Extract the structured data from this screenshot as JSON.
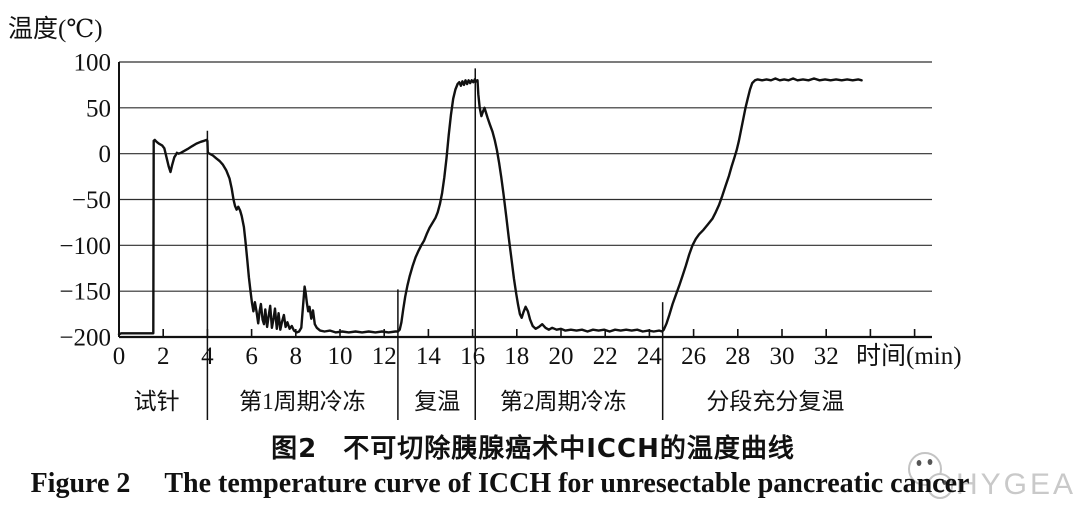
{
  "figure": {
    "caption_zh_prefix": "图2",
    "caption_zh_text": "不可切除胰腺癌术中ICCH的温度曲线",
    "caption_en_prefix": "Figure 2",
    "caption_en_text": "The temperature curve of ICCH for unresectable pancreatic cancer",
    "watermark_text": "HYGEA"
  },
  "colors": {
    "curve": "#111111",
    "grid": "#2e2e2e",
    "axis": "#111111",
    "divider": "#111111",
    "watermark_gray": "#c9c9c9",
    "watermark_eyes": "#555555"
  },
  "chart_data": {
    "type": "line",
    "ylabel": "温度(℃)",
    "xlabel": "时间(min)",
    "ylim": [
      -200,
      100
    ],
    "xlim": [
      0,
      37
    ],
    "grid": "horizontal",
    "legend": "none",
    "y_ticks": [
      100,
      50,
      0,
      -50,
      -100,
      -150,
      -200
    ],
    "x_ticks_labeled": [
      0,
      2,
      4,
      6,
      8,
      10,
      12,
      14,
      16,
      18,
      20,
      22,
      24,
      26,
      28,
      30,
      32
    ],
    "x_ticks_unlabeled": [
      34,
      36
    ],
    "phases": [
      {
        "label": "试针",
        "from": 0,
        "to": 4,
        "label_t": 1.7
      },
      {
        "label": "第1周期冷冻",
        "from": 4,
        "to": 12.62,
        "label_t": 8.3
      },
      {
        "label": "复温",
        "from": 12.62,
        "to": 16.12,
        "label_t": 14.4
      },
      {
        "label": "第2周期冷冻",
        "from": 16.12,
        "to": 24.6,
        "label_t": 20.1
      },
      {
        "label": "分段充分复温",
        "from": 24.6,
        "to": 33.6,
        "label_t": 29.7
      }
    ],
    "dividers": [
      {
        "t": 4,
        "top_temp": 25
      },
      {
        "t": 12.62,
        "top_temp": -148
      },
      {
        "t": 16.12,
        "top_temp": 93
      },
      {
        "t": 24.6,
        "top_temp": -162
      }
    ],
    "series": [
      {
        "name": "temperature",
        "points": [
          [
            0,
            -197
          ],
          [
            0.1,
            -196
          ],
          [
            1.5,
            -196
          ],
          [
            1.55,
            -196
          ],
          [
            1.57,
            14
          ],
          [
            1.62,
            15
          ],
          [
            1.7,
            13
          ],
          [
            1.8,
            11
          ],
          [
            1.95,
            9
          ],
          [
            2.05,
            6
          ],
          [
            2.15,
            -4
          ],
          [
            2.25,
            -14
          ],
          [
            2.33,
            -20
          ],
          [
            2.4,
            -13
          ],
          [
            2.5,
            -4
          ],
          [
            2.58,
            -1
          ],
          [
            2.62,
            1
          ],
          [
            2.7,
            0
          ],
          [
            2.8,
            1
          ],
          [
            2.95,
            3
          ],
          [
            3.1,
            5
          ],
          [
            3.3,
            8
          ],
          [
            3.5,
            11
          ],
          [
            3.7,
            13
          ],
          [
            3.85,
            14
          ],
          [
            3.97,
            15
          ],
          [
            4.0,
            14
          ],
          [
            4.02,
            1
          ],
          [
            4.1,
            0
          ],
          [
            4.25,
            -2
          ],
          [
            4.4,
            -5
          ],
          [
            4.55,
            -8
          ],
          [
            4.7,
            -12
          ],
          [
            4.85,
            -18
          ],
          [
            5.0,
            -27
          ],
          [
            5.1,
            -38
          ],
          [
            5.18,
            -50
          ],
          [
            5.25,
            -57
          ],
          [
            5.32,
            -61
          ],
          [
            5.4,
            -58
          ],
          [
            5.48,
            -62
          ],
          [
            5.55,
            -68
          ],
          [
            5.65,
            -80
          ],
          [
            5.72,
            -95
          ],
          [
            5.8,
            -115
          ],
          [
            5.88,
            -135
          ],
          [
            5.95,
            -150
          ],
          [
            6.02,
            -163
          ],
          [
            6.08,
            -172
          ],
          [
            6.15,
            -162
          ],
          [
            6.22,
            -172
          ],
          [
            6.3,
            -185
          ],
          [
            6.36,
            -172
          ],
          [
            6.42,
            -164
          ],
          [
            6.5,
            -181
          ],
          [
            6.56,
            -186
          ],
          [
            6.62,
            -170
          ],
          [
            6.7,
            -189
          ],
          [
            6.78,
            -176
          ],
          [
            6.84,
            -166
          ],
          [
            6.92,
            -190
          ],
          [
            7.0,
            -179
          ],
          [
            7.06,
            -169
          ],
          [
            7.14,
            -191
          ],
          [
            7.22,
            -174
          ],
          [
            7.3,
            -192
          ],
          [
            7.38,
            -183
          ],
          [
            7.46,
            -176
          ],
          [
            7.54,
            -189
          ],
          [
            7.62,
            -184
          ],
          [
            7.72,
            -191
          ],
          [
            7.82,
            -188
          ],
          [
            7.92,
            -193
          ],
          [
            8.05,
            -195
          ],
          [
            8.15,
            -194
          ],
          [
            8.25,
            -190
          ],
          [
            8.32,
            -168
          ],
          [
            8.4,
            -145
          ],
          [
            8.45,
            -152
          ],
          [
            8.5,
            -163
          ],
          [
            8.56,
            -172
          ],
          [
            8.62,
            -167
          ],
          [
            8.7,
            -180
          ],
          [
            8.78,
            -171
          ],
          [
            8.86,
            -186
          ],
          [
            8.95,
            -190
          ],
          [
            9.1,
            -193
          ],
          [
            9.3,
            -194
          ],
          [
            9.55,
            -193
          ],
          [
            9.8,
            -195
          ],
          [
            10.1,
            -194
          ],
          [
            10.4,
            -195
          ],
          [
            10.7,
            -194
          ],
          [
            11.0,
            -195
          ],
          [
            11.3,
            -194
          ],
          [
            11.6,
            -195
          ],
          [
            11.9,
            -194
          ],
          [
            12.2,
            -195
          ],
          [
            12.5,
            -194
          ],
          [
            12.62,
            -194
          ],
          [
            12.7,
            -192
          ],
          [
            12.78,
            -184
          ],
          [
            12.86,
            -170
          ],
          [
            12.95,
            -156
          ],
          [
            13.05,
            -144
          ],
          [
            13.15,
            -134
          ],
          [
            13.28,
            -123
          ],
          [
            13.42,
            -113
          ],
          [
            13.55,
            -106
          ],
          [
            13.68,
            -100
          ],
          [
            13.8,
            -95
          ],
          [
            13.92,
            -88
          ],
          [
            14.05,
            -81
          ],
          [
            14.2,
            -75
          ],
          [
            14.32,
            -70
          ],
          [
            14.42,
            -64
          ],
          [
            14.52,
            -55
          ],
          [
            14.62,
            -43
          ],
          [
            14.72,
            -26
          ],
          [
            14.82,
            -5
          ],
          [
            14.92,
            20
          ],
          [
            15.02,
            42
          ],
          [
            15.12,
            60
          ],
          [
            15.22,
            70
          ],
          [
            15.32,
            76
          ],
          [
            15.4,
            78
          ],
          [
            15.47,
            74
          ],
          [
            15.54,
            79
          ],
          [
            15.61,
            75
          ],
          [
            15.68,
            80
          ],
          [
            15.75,
            76
          ],
          [
            15.82,
            80
          ],
          [
            15.89,
            77
          ],
          [
            15.96,
            80
          ],
          [
            16.03,
            78
          ],
          [
            16.1,
            81
          ],
          [
            16.17,
            79
          ],
          [
            16.22,
            80
          ],
          [
            16.26,
            65
          ],
          [
            16.32,
            50
          ],
          [
            16.4,
            41
          ],
          [
            16.47,
            46
          ],
          [
            16.54,
            50
          ],
          [
            16.6,
            45
          ],
          [
            16.68,
            39
          ],
          [
            16.78,
            32
          ],
          [
            16.9,
            24
          ],
          [
            17.0,
            15
          ],
          [
            17.1,
            4
          ],
          [
            17.2,
            -10
          ],
          [
            17.3,
            -26
          ],
          [
            17.4,
            -44
          ],
          [
            17.52,
            -68
          ],
          [
            17.64,
            -92
          ],
          [
            17.76,
            -115
          ],
          [
            17.87,
            -136
          ],
          [
            17.97,
            -152
          ],
          [
            18.06,
            -165
          ],
          [
            18.14,
            -175
          ],
          [
            18.22,
            -179
          ],
          [
            18.3,
            -173
          ],
          [
            18.4,
            -167
          ],
          [
            18.5,
            -172
          ],
          [
            18.6,
            -181
          ],
          [
            18.72,
            -188
          ],
          [
            18.85,
            -191
          ],
          [
            19.0,
            -189
          ],
          [
            19.15,
            -186
          ],
          [
            19.3,
            -190
          ],
          [
            19.45,
            -192
          ],
          [
            19.6,
            -190
          ],
          [
            19.8,
            -192
          ],
          [
            20.0,
            -191
          ],
          [
            20.2,
            -193
          ],
          [
            20.45,
            -192
          ],
          [
            20.7,
            -193
          ],
          [
            20.95,
            -192
          ],
          [
            21.2,
            -194
          ],
          [
            21.45,
            -192
          ],
          [
            21.7,
            -193
          ],
          [
            21.95,
            -192
          ],
          [
            22.2,
            -194
          ],
          [
            22.45,
            -192
          ],
          [
            22.7,
            -193
          ],
          [
            22.95,
            -192
          ],
          [
            23.2,
            -193
          ],
          [
            23.45,
            -192
          ],
          [
            23.7,
            -194
          ],
          [
            23.95,
            -193
          ],
          [
            24.2,
            -194
          ],
          [
            24.45,
            -193
          ],
          [
            24.58,
            -194
          ],
          [
            24.65,
            -192
          ],
          [
            24.78,
            -185
          ],
          [
            24.9,
            -176
          ],
          [
            25.05,
            -164
          ],
          [
            25.2,
            -154
          ],
          [
            25.35,
            -144
          ],
          [
            25.5,
            -133
          ],
          [
            25.65,
            -122
          ],
          [
            25.8,
            -110
          ],
          [
            25.95,
            -100
          ],
          [
            26.1,
            -93
          ],
          [
            26.25,
            -88
          ],
          [
            26.45,
            -83
          ],
          [
            26.65,
            -77
          ],
          [
            26.85,
            -71
          ],
          [
            27.0,
            -64
          ],
          [
            27.15,
            -56
          ],
          [
            27.3,
            -46
          ],
          [
            27.45,
            -35
          ],
          [
            27.6,
            -24
          ],
          [
            27.72,
            -14
          ],
          [
            27.85,
            -4
          ],
          [
            27.95,
            4
          ],
          [
            28.05,
            14
          ],
          [
            28.15,
            26
          ],
          [
            28.25,
            38
          ],
          [
            28.35,
            50
          ],
          [
            28.45,
            60
          ],
          [
            28.55,
            70
          ],
          [
            28.65,
            77
          ],
          [
            28.78,
            80
          ],
          [
            28.9,
            81
          ],
          [
            29.1,
            80
          ],
          [
            29.3,
            81
          ],
          [
            29.5,
            80
          ],
          [
            29.7,
            82
          ],
          [
            29.9,
            80
          ],
          [
            30.1,
            81
          ],
          [
            30.3,
            80
          ],
          [
            30.5,
            82
          ],
          [
            30.7,
            80
          ],
          [
            30.95,
            81
          ],
          [
            31.2,
            80
          ],
          [
            31.45,
            82
          ],
          [
            31.7,
            80
          ],
          [
            31.95,
            81
          ],
          [
            32.2,
            80
          ],
          [
            32.45,
            81
          ],
          [
            32.7,
            80
          ],
          [
            32.95,
            81
          ],
          [
            33.2,
            80
          ],
          [
            33.45,
            81
          ],
          [
            33.6,
            80
          ]
        ]
      }
    ]
  }
}
